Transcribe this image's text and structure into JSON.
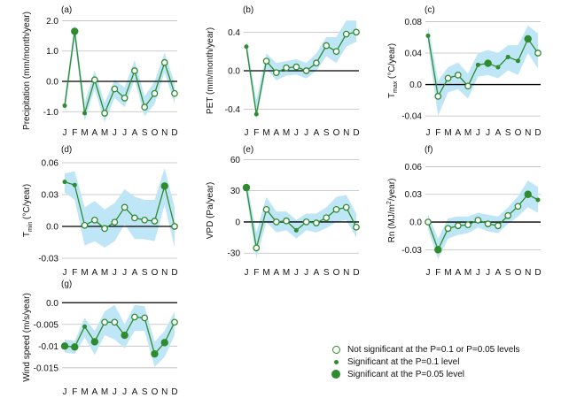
{
  "months": [
    "J",
    "F",
    "M",
    "A",
    "M",
    "J",
    "J",
    "A",
    "S",
    "O",
    "N",
    "D"
  ],
  "colors": {
    "line": "#2e8b2e",
    "band": "#bfe6f6",
    "zero": "#000000"
  },
  "legend": [
    {
      "symbol": "open",
      "label": "Not significant at the P=0.1 or P=0.05 levels"
    },
    {
      "symbol": "small",
      "label": "Significant at the P=0.1 level"
    },
    {
      "symbol": "large",
      "label": "Significant at the P=0.05 level"
    }
  ],
  "chart_data": [
    {
      "type": "line",
      "panel": "(a)",
      "ylabel": "Precipitation (mm/month/year)",
      "ylim": [
        -1.4,
        2.1
      ],
      "yticks": [
        -1.0,
        0.0,
        1.0,
        2.0
      ],
      "ytick_labels": [
        "-1.0",
        "0.0",
        "1.0",
        "2.0"
      ],
      "values": [
        -0.8,
        1.65,
        -1.05,
        0.05,
        -1.05,
        -0.25,
        -0.55,
        0.35,
        -0.85,
        -0.4,
        0.62,
        -0.4
      ],
      "band_upper": [
        -0.55,
        1.9,
        -0.7,
        0.35,
        -0.7,
        0.05,
        -0.2,
        0.7,
        -0.5,
        0.0,
        0.95,
        -0.05
      ],
      "band_lower": [
        -1.05,
        1.35,
        -1.3,
        -0.25,
        -1.35,
        -0.55,
        -0.85,
        0.05,
        -1.15,
        -0.75,
        0.3,
        -0.75
      ],
      "significance": [
        "small",
        "large",
        "small",
        "open",
        "open",
        "open",
        "open",
        "open",
        "open",
        "open",
        "open",
        "open"
      ]
    },
    {
      "type": "line",
      "panel": "(b)",
      "ylabel": "PET (mm/month/year)",
      "ylim": [
        -0.55,
        0.55
      ],
      "yticks": [
        -0.4,
        0.0,
        0.4
      ],
      "ytick_labels": [
        "-0.4",
        "0.0",
        "0.4"
      ],
      "values": [
        0.25,
        -0.45,
        0.1,
        -0.02,
        0.03,
        0.04,
        0.0,
        0.08,
        0.26,
        0.2,
        0.38,
        0.4
      ],
      "band_upper": [
        0.32,
        -0.3,
        0.18,
        0.08,
        0.1,
        0.12,
        0.08,
        0.18,
        0.35,
        0.35,
        0.52,
        0.52
      ],
      "band_lower": [
        0.18,
        -0.5,
        0.02,
        -0.1,
        -0.05,
        -0.04,
        -0.08,
        0.0,
        0.15,
        0.08,
        0.25,
        0.3
      ],
      "significance": [
        "small",
        "small",
        "open",
        "open",
        "open",
        "open",
        "open",
        "open",
        "open",
        "open",
        "open",
        "open"
      ]
    },
    {
      "type": "line",
      "panel": "(c)",
      "ylabel": "Tmax (°C/year)",
      "ylabel_main": "T",
      "ylabel_sub": "max",
      "ylabel_rest": " (°C/year)",
      "ylim": [
        -0.05,
        0.085
      ],
      "yticks": [
        -0.04,
        0.0,
        0.04,
        0.08
      ],
      "ytick_labels": [
        "-0.04",
        "0.0",
        "0.04",
        "0.08"
      ],
      "values": [
        0.062,
        -0.015,
        0.008,
        0.012,
        -0.002,
        0.025,
        0.027,
        0.022,
        0.035,
        0.03,
        0.058,
        0.04
      ],
      "band_upper": [
        0.075,
        0.005,
        0.022,
        0.028,
        0.014,
        0.04,
        0.044,
        0.04,
        0.05,
        0.05,
        0.075,
        0.065
      ],
      "band_lower": [
        0.05,
        -0.04,
        -0.01,
        -0.006,
        -0.018,
        0.01,
        0.012,
        0.008,
        0.018,
        0.012,
        0.04,
        0.02
      ],
      "significance": [
        "small",
        "open",
        "open",
        "open",
        "open",
        "small",
        "large",
        "small",
        "small",
        "small",
        "large",
        "open"
      ]
    },
    {
      "type": "line",
      "panel": "(d)",
      "ylabel": "Tmin (°C/year)",
      "ylabel_main": "T",
      "ylabel_sub": "min",
      "ylabel_rest": " (°C/year)",
      "ylim": [
        -0.035,
        0.065
      ],
      "yticks": [
        -0.03,
        0.0,
        0.03,
        0.06
      ],
      "ytick_labels": [
        "-0.03",
        "0.0",
        "0.03",
        "0.06"
      ],
      "values": [
        0.042,
        0.039,
        0.001,
        0.006,
        -0.002,
        0.004,
        0.018,
        0.008,
        0.006,
        0.005,
        0.038,
        0.0
      ],
      "band_upper": [
        0.05,
        0.052,
        0.018,
        0.024,
        0.016,
        0.022,
        0.035,
        0.028,
        0.025,
        0.025,
        0.055,
        0.018
      ],
      "band_lower": [
        0.032,
        0.025,
        -0.018,
        -0.014,
        -0.02,
        -0.014,
        0.002,
        -0.012,
        -0.012,
        -0.014,
        0.02,
        -0.02
      ],
      "significance": [
        "small",
        "small",
        "open",
        "open",
        "open",
        "open",
        "open",
        "open",
        "open",
        "open",
        "large",
        "open"
      ]
    },
    {
      "type": "line",
      "panel": "(e)",
      "ylabel": "VPD (Pa/year)",
      "ylim": [
        -40,
        62
      ],
      "yticks": [
        -30,
        0,
        30,
        60
      ],
      "ytick_labels": [
        "-30",
        "0",
        "30",
        "60"
      ],
      "values": [
        33,
        -25,
        12,
        0,
        1,
        -8,
        0,
        -1,
        4,
        12,
        14,
        -5
      ],
      "band_upper": [
        40,
        -10,
        24,
        10,
        10,
        2,
        8,
        8,
        14,
        24,
        26,
        8
      ],
      "band_lower": [
        25,
        -35,
        0,
        -10,
        -8,
        -16,
        -8,
        -10,
        -6,
        0,
        2,
        -15
      ],
      "significance": [
        "large",
        "open",
        "open",
        "open",
        "open",
        "small",
        "open",
        "open",
        "open",
        "open",
        "open",
        "open"
      ]
    },
    {
      "type": "line",
      "panel": "(f)",
      "ylabel": "Rn (MJ/m²/year)",
      "ylabel_main": "Rn (MJ/m",
      "ylabel_sup": "2",
      "ylabel_rest": "/year)",
      "ylim": [
        -0.045,
        0.07
      ],
      "yticks": [
        -0.03,
        0.0,
        0.03,
        0.06
      ],
      "ytick_labels": [
        "-0.03",
        "0.0",
        "0.03",
        "0.06"
      ],
      "values": [
        0.0,
        -0.03,
        -0.007,
        -0.004,
        -0.003,
        0.002,
        -0.002,
        -0.004,
        0.007,
        0.017,
        0.03,
        0.024
      ],
      "band_upper": [
        0.008,
        -0.018,
        0.004,
        0.006,
        0.006,
        0.01,
        0.008,
        0.006,
        0.016,
        0.028,
        0.045,
        0.038
      ],
      "band_lower": [
        -0.008,
        -0.04,
        -0.018,
        -0.014,
        -0.012,
        -0.006,
        -0.01,
        -0.012,
        -0.002,
        0.006,
        0.016,
        0.01
      ],
      "significance": [
        "open",
        "large",
        "open",
        "open",
        "open",
        "open",
        "open",
        "open",
        "open",
        "open",
        "large",
        "small"
      ]
    },
    {
      "type": "line",
      "panel": "(g)",
      "ylabel": "Wind speed (m/s/year)",
      "ylim": [
        -0.0185,
        0.0025
      ],
      "yticks": [
        -0.015,
        -0.01,
        -0.005,
        0.0
      ],
      "ytick_labels": [
        "-0.015",
        "-0.01",
        "-0.005",
        "0.0"
      ],
      "values": [
        -0.01,
        -0.0102,
        -0.0055,
        -0.009,
        -0.0045,
        -0.0045,
        -0.0075,
        -0.0033,
        -0.0035,
        -0.0118,
        -0.0092,
        -0.0045
      ],
      "band_upper": [
        -0.0085,
        -0.0088,
        -0.0035,
        -0.0065,
        -0.002,
        -0.0005,
        -0.005,
        -0.0005,
        -0.0008,
        -0.009,
        -0.0065,
        -0.002
      ],
      "band_lower": [
        -0.0115,
        -0.0118,
        -0.008,
        -0.012,
        -0.0075,
        -0.0085,
        -0.0105,
        -0.0065,
        -0.0065,
        -0.0148,
        -0.0125,
        -0.0075
      ],
      "significance": [
        "large",
        "large",
        "small",
        "large",
        "open",
        "open",
        "large",
        "open",
        "open",
        "large",
        "large",
        "open"
      ]
    }
  ]
}
